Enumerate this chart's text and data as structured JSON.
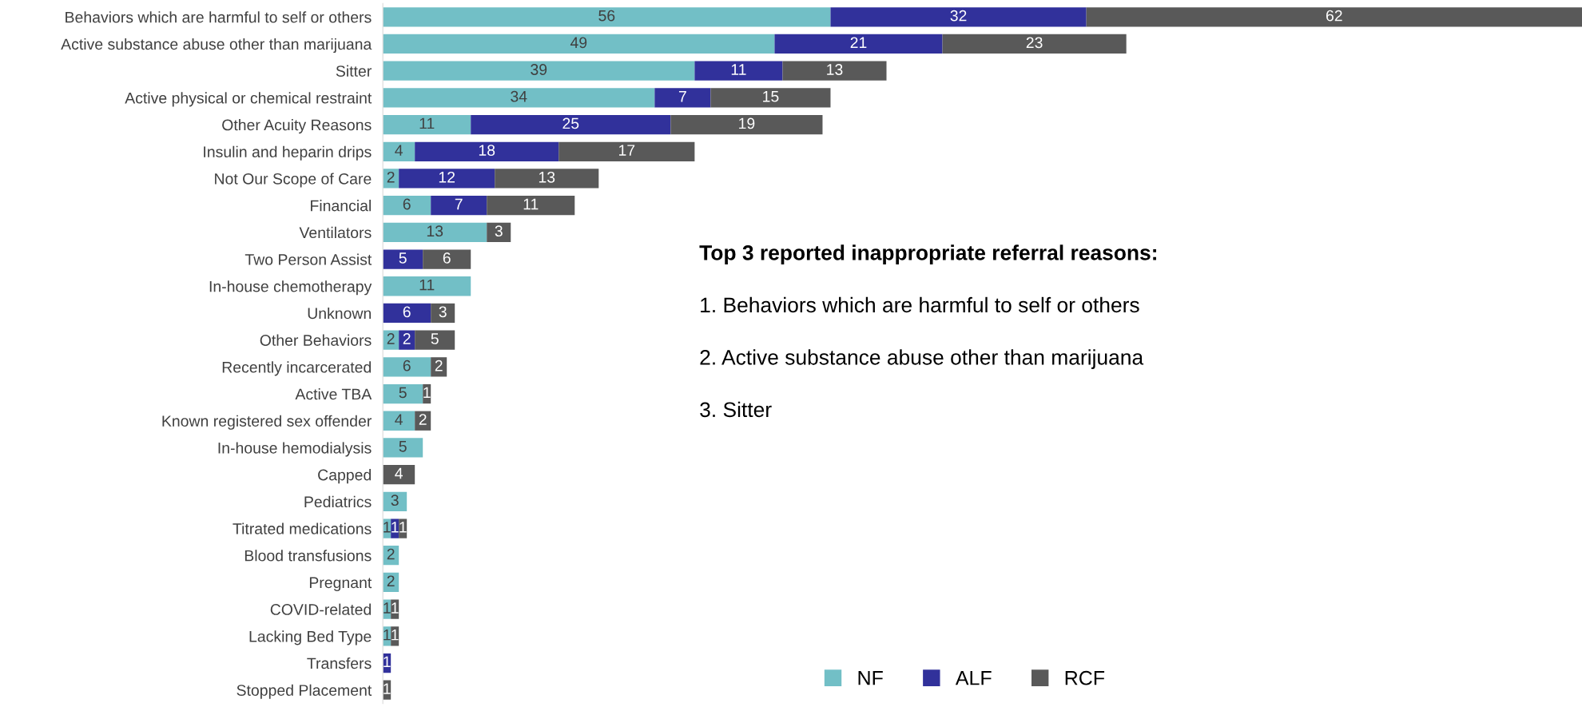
{
  "chart_data": {
    "type": "bar",
    "orientation": "horizontal",
    "stacked": true,
    "data_labels": true,
    "legend": "bottom",
    "grid": false,
    "categories": [
      "Behaviors which are harmful to self or others",
      "Active substance abuse other than marijuana",
      "Sitter",
      "Active physical or chemical restraint",
      "Other Acuity Reasons",
      "Insulin and heparin drips",
      "Not Our Scope of Care",
      "Financial",
      "Ventilators",
      "Two Person Assist",
      "In-house chemotherapy",
      "Unknown",
      "Other Behaviors",
      "Recently incarcerated",
      "Active TBA",
      "Known registered sex offender",
      "In-house hemodialysis",
      "Capped",
      "Pediatrics",
      "Titrated medications",
      "Blood transfusions",
      "Pregnant",
      "COVID-related",
      "Lacking Bed Type",
      "Transfers",
      "Stopped Placement"
    ],
    "series": [
      {
        "name": "NF",
        "color": "#72bfc6",
        "values": [
          56,
          49,
          39,
          34,
          11,
          4,
          2,
          6,
          13,
          null,
          11,
          null,
          2,
          6,
          5,
          4,
          5,
          null,
          3,
          1,
          2,
          2,
          1,
          1,
          null,
          null
        ]
      },
      {
        "name": "ALF",
        "color": "#31319b",
        "values": [
          32,
          21,
          11,
          7,
          25,
          18,
          12,
          7,
          null,
          5,
          null,
          6,
          2,
          null,
          null,
          null,
          null,
          null,
          null,
          1,
          null,
          null,
          null,
          null,
          1,
          null
        ]
      },
      {
        "name": "RCF",
        "color": "#595959",
        "values": [
          62,
          23,
          13,
          15,
          19,
          17,
          13,
          11,
          3,
          6,
          null,
          3,
          5,
          2,
          1,
          2,
          null,
          4,
          null,
          1,
          null,
          null,
          1,
          1,
          null,
          1
        ]
      }
    ],
    "annotations": [
      "Top 3 reported inappropriate referral reasons:",
      "1. Behaviors which are harmful to self or others",
      "2. Active substance abuse other than marijuana",
      "3. Sitter"
    ]
  }
}
